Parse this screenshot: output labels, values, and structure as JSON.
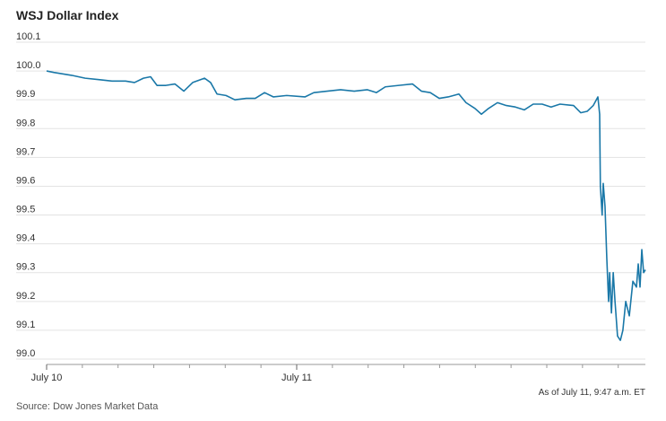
{
  "chart_data": {
    "type": "line",
    "title": "WSJ Dollar Index",
    "note": "As of July 11, 9:47 a.m. ET",
    "source": "Source: Dow Jones Market Data",
    "x": [
      0,
      0.2,
      0.45,
      0.7,
      1.08,
      1.46,
      1.83,
      2.21,
      2.46,
      2.71,
      2.91,
      3.09,
      3.34,
      3.59,
      3.84,
      4.09,
      4.42,
      4.59,
      4.77,
      5.02,
      5.27,
      5.59,
      5.84,
      6.1,
      6.35,
      6.72,
      7.23,
      7.48,
      7.85,
      8.23,
      8.61,
      8.98,
      9.23,
      9.48,
      9.86,
      10.24,
      10.49,
      10.74,
      10.99,
      11.24,
      11.54,
      11.74,
      11.99,
      12.17,
      12.37,
      12.62,
      12.87,
      13.12,
      13.37,
      13.62,
      13.87,
      14.12,
      14.37,
      14.75,
      14.95,
      15.13,
      15.3,
      15.43,
      15.48,
      15.5,
      15.55,
      15.58,
      15.63,
      15.68,
      15.73,
      15.76,
      15.81,
      15.86,
      15.91,
      15.98,
      16.06,
      16.13,
      16.21,
      16.31,
      16.41,
      16.51,
      16.56,
      16.61,
      16.66,
      16.71,
      16.76
    ],
    "series": [
      {
        "name": "WSJ Dollar Index",
        "color": "#1a78a8",
        "values": [
          100.0,
          99.995,
          99.99,
          99.985,
          99.975,
          99.97,
          99.965,
          99.965,
          99.96,
          99.975,
          99.98,
          99.95,
          99.95,
          99.955,
          99.93,
          99.96,
          99.975,
          99.96,
          99.92,
          99.915,
          99.9,
          99.905,
          99.905,
          99.925,
          99.91,
          99.915,
          99.91,
          99.925,
          99.93,
          99.935,
          99.93,
          99.935,
          99.925,
          99.945,
          99.95,
          99.955,
          99.93,
          99.925,
          99.905,
          99.91,
          99.92,
          99.89,
          99.87,
          99.85,
          99.87,
          99.89,
          99.88,
          99.875,
          99.865,
          99.885,
          99.885,
          99.875,
          99.885,
          99.88,
          99.855,
          99.86,
          99.88,
          99.91,
          99.85,
          99.6,
          99.5,
          99.61,
          99.53,
          99.35,
          99.2,
          99.3,
          99.16,
          99.3,
          99.2,
          99.08,
          99.065,
          99.1,
          99.2,
          99.15,
          99.27,
          99.25,
          99.33,
          99.25,
          99.38,
          99.3,
          99.31
        ]
      }
    ],
    "xlim": [
      0,
      16.76
    ],
    "xticks": [
      {
        "value": 0,
        "label": "July 10"
      },
      {
        "value": 7,
        "label": "July 11"
      }
    ],
    "minor_xticks": [
      1,
      2,
      3,
      4,
      5,
      6,
      8,
      9,
      10,
      11,
      12,
      13,
      14,
      15,
      16
    ],
    "ylim": [
      99.0,
      100.1
    ],
    "yticks": [
      {
        "value": 99,
        "label": "99.0"
      },
      99.1,
      99.2,
      99.3,
      99.4,
      99.5,
      99.6,
      99.7,
      99.8,
      99.9,
      {
        "value": 100,
        "label": "100.0"
      },
      100.1
    ],
    "grid": true
  }
}
